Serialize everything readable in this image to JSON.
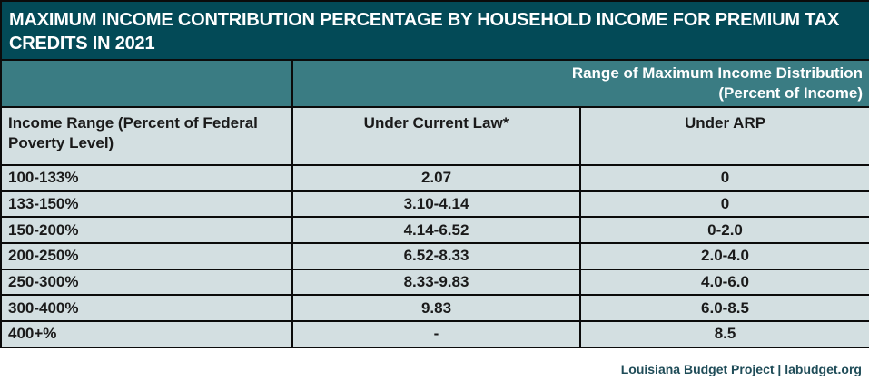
{
  "title": "MAXIMUM INCOME CONTRIBUTION PERCENTAGE BY HOUSEHOLD INCOME FOR PREMIUM TAX CREDITS IN 2021",
  "group_header": {
    "line1": "Range of Maximum Income Distribution",
    "line2": "(Percent of Income)"
  },
  "columns": [
    "Income Range (Percent of Federal Poverty Level)",
    "Under Current Law*",
    "Under ARP"
  ],
  "rows": [
    [
      "100-133%",
      "2.07",
      "0"
    ],
    [
      "133-150%",
      "3.10-4.14",
      "0"
    ],
    [
      "150-200%",
      "4.14-6.52",
      "0-2.0"
    ],
    [
      "200-250%",
      "6.52-8.33",
      "2.0-4.0"
    ],
    [
      "250-300%",
      "8.33-9.83",
      "4.0-6.0"
    ],
    [
      "300-400%",
      "9.83",
      "6.0-8.5"
    ],
    [
      "400+%",
      "-",
      "8.5"
    ]
  ],
  "footer": "Louisiana Budget Project | labudget.org",
  "colors": {
    "title_bg": "#034a57",
    "header_bg": "#3a7c83",
    "cell_bg": "#d3dfe1",
    "footer_text": "#1f4c58"
  }
}
